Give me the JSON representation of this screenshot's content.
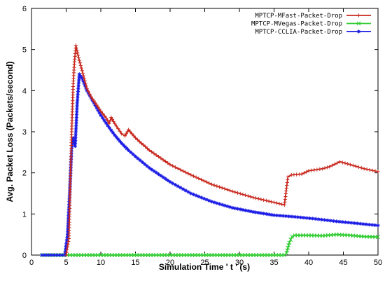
{
  "chart_data": {
    "type": "line",
    "title": "",
    "xlabel": "Simulation Time ' t ' (s)",
    "ylabel": "Avg. Packet Loss (Packets/second)",
    "xlim": [
      0,
      50
    ],
    "ylim": [
      0,
      6
    ],
    "xticks": [
      "0",
      "5",
      "10",
      "15",
      "20",
      "25",
      "30",
      "35",
      "40",
      "45",
      "50"
    ],
    "yticks": [
      "0",
      "1",
      "2",
      "3",
      "4",
      "5",
      "6"
    ],
    "grid": false,
    "legend_position": "top-right",
    "series": [
      {
        "name": "MPTCP-MFast-Packet-Drop",
        "color": "#c8281e",
        "marker": "plus",
        "points": [
          [
            5.0,
            0.0
          ],
          [
            5.4,
            0.4
          ],
          [
            5.6,
            1.8
          ],
          [
            5.8,
            3.0
          ],
          [
            6.0,
            4.1
          ],
          [
            6.2,
            4.7
          ],
          [
            6.4,
            5.1
          ],
          [
            6.8,
            4.8
          ],
          [
            7.2,
            4.55
          ],
          [
            7.6,
            4.3
          ],
          [
            8.0,
            4.05
          ],
          [
            8.6,
            3.85
          ],
          [
            9.2,
            3.7
          ],
          [
            10.0,
            3.5
          ],
          [
            10.8,
            3.33
          ],
          [
            11.2,
            3.2
          ],
          [
            11.5,
            3.35
          ],
          [
            12.0,
            3.2
          ],
          [
            13.0,
            2.95
          ],
          [
            13.5,
            2.9
          ],
          [
            14.0,
            3.05
          ],
          [
            15.0,
            2.85
          ],
          [
            17.0,
            2.55
          ],
          [
            20.0,
            2.2
          ],
          [
            23.0,
            1.95
          ],
          [
            26.0,
            1.72
          ],
          [
            29.0,
            1.55
          ],
          [
            32.0,
            1.4
          ],
          [
            35.0,
            1.28
          ],
          [
            36.5,
            1.22
          ],
          [
            37.0,
            1.9
          ],
          [
            37.5,
            1.95
          ],
          [
            39.0,
            1.97
          ],
          [
            40.0,
            2.05
          ],
          [
            42.0,
            2.1
          ],
          [
            43.0,
            2.15
          ],
          [
            44.5,
            2.27
          ],
          [
            46.0,
            2.2
          ],
          [
            48.0,
            2.1
          ],
          [
            50.0,
            2.03
          ]
        ]
      },
      {
        "name": "MPTCP-MVegas-Packet-Drop",
        "color": "#33cc33",
        "marker": "x",
        "points": [
          [
            1.5,
            0.0
          ],
          [
            10.0,
            0.0
          ],
          [
            20.0,
            0.0
          ],
          [
            30.0,
            0.0
          ],
          [
            36.5,
            0.0
          ],
          [
            36.8,
            0.05
          ],
          [
            37.2,
            0.3
          ],
          [
            37.6,
            0.45
          ],
          [
            38.0,
            0.48
          ],
          [
            40.0,
            0.48
          ],
          [
            42.0,
            0.47
          ],
          [
            44.0,
            0.5
          ],
          [
            46.0,
            0.48
          ],
          [
            48.0,
            0.45
          ],
          [
            50.0,
            0.44
          ]
        ]
      },
      {
        "name": "MPTCP-CCLIA-Packet-Drop",
        "color": "#1a1ae6",
        "marker": "star",
        "points": [
          [
            1.5,
            0.0
          ],
          [
            4.8,
            0.0
          ],
          [
            5.2,
            0.5
          ],
          [
            5.5,
            1.5
          ],
          [
            5.8,
            2.6
          ],
          [
            6.0,
            2.85
          ],
          [
            6.3,
            2.65
          ],
          [
            6.6,
            3.7
          ],
          [
            6.9,
            4.4
          ],
          [
            7.3,
            4.3
          ],
          [
            8.0,
            4.0
          ],
          [
            9.0,
            3.7
          ],
          [
            10.0,
            3.4
          ],
          [
            11.0,
            3.15
          ],
          [
            12.0,
            2.92
          ],
          [
            13.0,
            2.72
          ],
          [
            14.0,
            2.55
          ],
          [
            15.0,
            2.4
          ],
          [
            17.0,
            2.12
          ],
          [
            20.0,
            1.78
          ],
          [
            23.0,
            1.5
          ],
          [
            26.0,
            1.3
          ],
          [
            29.0,
            1.15
          ],
          [
            32.0,
            1.05
          ],
          [
            35.0,
            0.97
          ],
          [
            38.0,
            0.93
          ],
          [
            41.0,
            0.88
          ],
          [
            44.0,
            0.82
          ],
          [
            47.0,
            0.77
          ],
          [
            50.0,
            0.72
          ]
        ]
      }
    ]
  }
}
